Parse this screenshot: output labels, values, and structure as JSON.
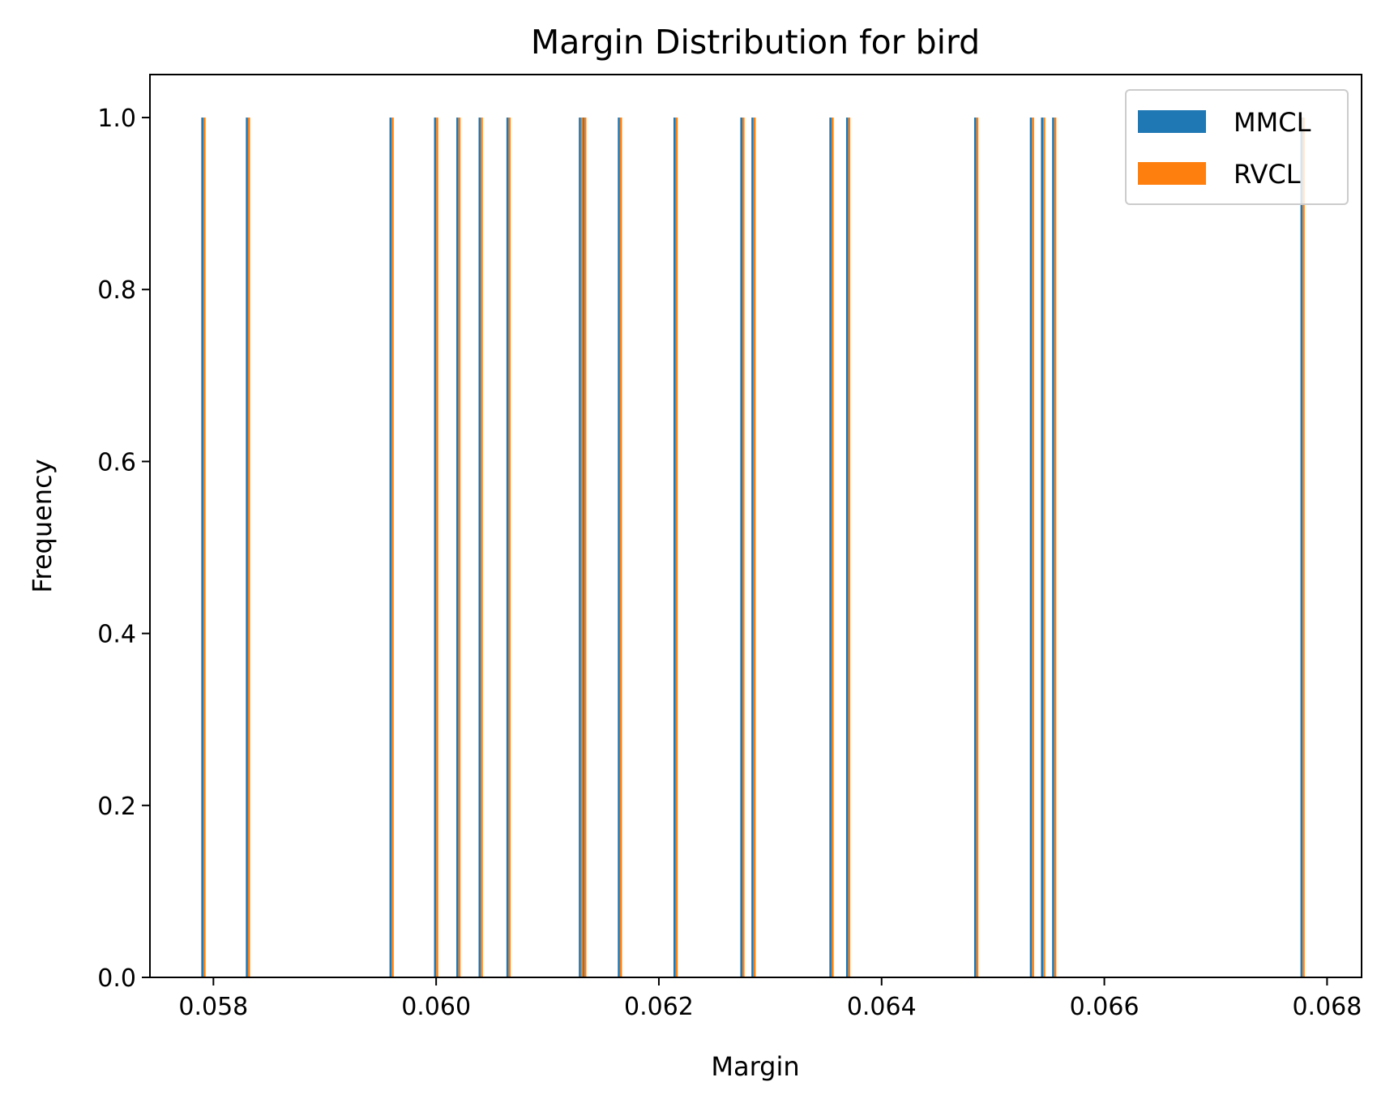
{
  "chart_data": {
    "type": "bar",
    "title": "Margin Distribution for bird",
    "xlabel": "Margin",
    "ylabel": "Frequency",
    "xlim": [
      0.05743,
      0.06831
    ],
    "ylim": [
      0.0,
      1.05
    ],
    "xticks": [
      "0.058",
      "0.060",
      "0.062",
      "0.064",
      "0.066",
      "0.068"
    ],
    "xtick_values": [
      0.058,
      0.06,
      0.062,
      0.064,
      0.066,
      0.068
    ],
    "yticks": [
      "0.0",
      "0.2",
      "0.4",
      "0.6",
      "0.8",
      "1.0"
    ],
    "ytick_values": [
      0.0,
      0.2,
      0.4,
      0.6,
      0.8,
      1.0
    ],
    "grid": false,
    "legend_position": "top-right",
    "series": [
      {
        "name": "MMCL",
        "color": "#1f77b4",
        "x": [
          0.05791,
          0.05831,
          0.0596,
          0.06,
          0.0602,
          0.0604,
          0.06065,
          0.0613,
          0.06133,
          0.06165,
          0.06215,
          0.06275,
          0.06285,
          0.06355,
          0.0637,
          0.06485,
          0.06535,
          0.06545,
          0.06555,
          0.06778
        ],
        "values": [
          1,
          1,
          1,
          1,
          1,
          1,
          1,
          1,
          1,
          1,
          1,
          1,
          1,
          1,
          1,
          1,
          1,
          1,
          1,
          1
        ]
      },
      {
        "name": "RVCL",
        "color": "#ff7f0e",
        "x": [
          0.05791,
          0.05831,
          0.0596,
          0.06,
          0.0602,
          0.0604,
          0.06065,
          0.0613,
          0.06133,
          0.06165,
          0.06215,
          0.06275,
          0.06285,
          0.06355,
          0.0637,
          0.06485,
          0.06535,
          0.06545,
          0.06555,
          0.06778
        ],
        "values": [
          1,
          1,
          1,
          1,
          1,
          1,
          1,
          1,
          1,
          1,
          1,
          1,
          1,
          1,
          1,
          1,
          1,
          1,
          1,
          1
        ]
      }
    ]
  }
}
